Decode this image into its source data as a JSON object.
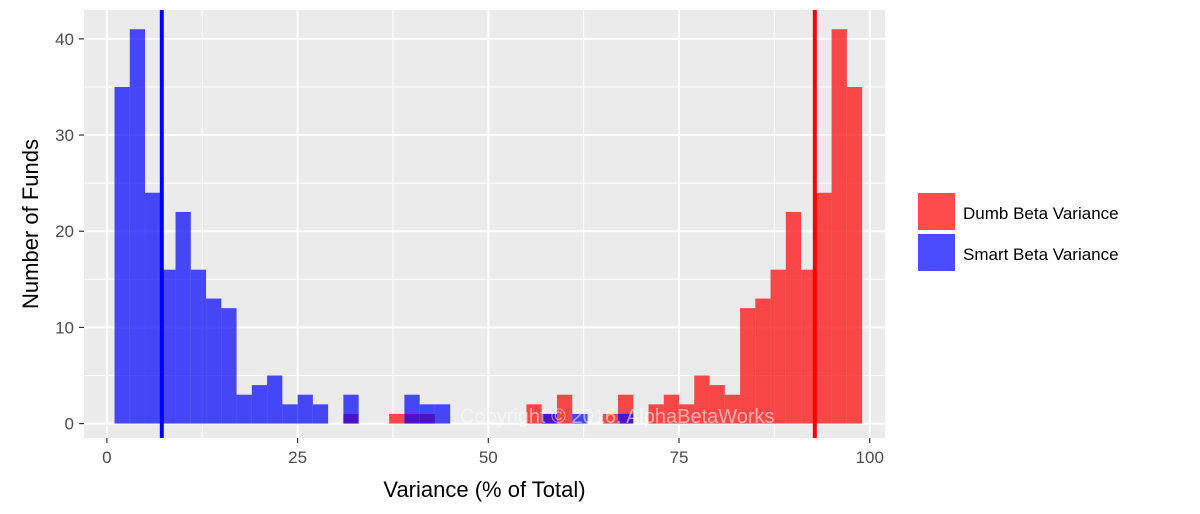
{
  "chart_data": {
    "type": "histogram",
    "xlabel": "Variance (% of Total)",
    "ylabel": "Number of Funds",
    "xlim": [
      -3,
      102
    ],
    "ylim": [
      -1.5,
      43
    ],
    "x_ticks": [
      0,
      25,
      50,
      75,
      100
    ],
    "x_tick_labels": [
      "0",
      "25",
      "50",
      "75",
      "100"
    ],
    "y_ticks": [
      0,
      10,
      20,
      30,
      40
    ],
    "y_tick_labels": [
      "0",
      "10",
      "20",
      "30",
      "40"
    ],
    "bin_width": 2,
    "grid": true,
    "legend_position": "right",
    "series": [
      {
        "name": "Dumb Beta Variance",
        "color": "#ff0000",
        "opacity": 0.7,
        "bins": [
          {
            "x": 32,
            "count": 1
          },
          {
            "x": 38,
            "count": 1
          },
          {
            "x": 40,
            "count": 1
          },
          {
            "x": 42,
            "count": 1
          },
          {
            "x": 56,
            "count": 2
          },
          {
            "x": 58,
            "count": 1
          },
          {
            "x": 60,
            "count": 3
          },
          {
            "x": 66,
            "count": 1
          },
          {
            "x": 68,
            "count": 3
          },
          {
            "x": 72,
            "count": 2
          },
          {
            "x": 74,
            "count": 3
          },
          {
            "x": 76,
            "count": 2
          },
          {
            "x": 78,
            "count": 5
          },
          {
            "x": 80,
            "count": 4
          },
          {
            "x": 82,
            "count": 3
          },
          {
            "x": 84,
            "count": 12
          },
          {
            "x": 86,
            "count": 13
          },
          {
            "x": 88,
            "count": 16
          },
          {
            "x": 90,
            "count": 22
          },
          {
            "x": 92,
            "count": 16
          },
          {
            "x": 94,
            "count": 24
          },
          {
            "x": 96,
            "count": 41
          },
          {
            "x": 98,
            "count": 35
          }
        ],
        "mean_line": 92.8,
        "mean_line_color": "#ff0000"
      },
      {
        "name": "Smart Beta Variance",
        "color": "#0000ff",
        "opacity": 0.7,
        "bins": [
          {
            "x": 2,
            "count": 35
          },
          {
            "x": 4,
            "count": 41
          },
          {
            "x": 6,
            "count": 24
          },
          {
            "x": 8,
            "count": 16
          },
          {
            "x": 10,
            "count": 22
          },
          {
            "x": 12,
            "count": 16
          },
          {
            "x": 14,
            "count": 13
          },
          {
            "x": 16,
            "count": 12
          },
          {
            "x": 18,
            "count": 3
          },
          {
            "x": 20,
            "count": 4
          },
          {
            "x": 22,
            "count": 5
          },
          {
            "x": 24,
            "count": 2
          },
          {
            "x": 26,
            "count": 3
          },
          {
            "x": 28,
            "count": 2
          },
          {
            "x": 32,
            "count": 3
          },
          {
            "x": 40,
            "count": 3
          },
          {
            "x": 42,
            "count": 2
          },
          {
            "x": 44,
            "count": 2
          },
          {
            "x": 58,
            "count": 1
          },
          {
            "x": 62,
            "count": 1
          },
          {
            "x": 68,
            "count": 1
          }
        ],
        "mean_line": 7.2,
        "mean_line_color": "#0000ff"
      }
    ],
    "annotations": [
      "Copyright © 2016, AlphaBetaWorks"
    ]
  }
}
